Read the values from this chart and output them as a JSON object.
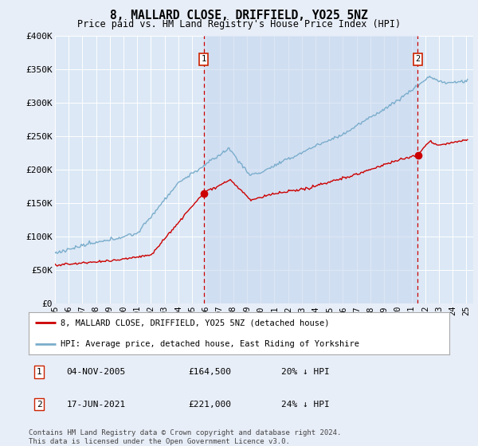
{
  "title": "8, MALLARD CLOSE, DRIFFIELD, YO25 5NZ",
  "subtitle": "Price paid vs. HM Land Registry's House Price Index (HPI)",
  "legend_red": "8, MALLARD CLOSE, DRIFFIELD, YO25 5NZ (detached house)",
  "legend_blue": "HPI: Average price, detached house, East Riding of Yorkshire",
  "annotation1_date": "04-NOV-2005",
  "annotation1_price": "£164,500",
  "annotation1_hpi": "20% ↓ HPI",
  "annotation1_year": 2005.85,
  "annotation2_date": "17-JUN-2021",
  "annotation2_price": "£221,000",
  "annotation2_hpi": "24% ↓ HPI",
  "annotation2_year": 2021.46,
  "footer": "Contains HM Land Registry data © Crown copyright and database right 2024.\nThis data is licensed under the Open Government Licence v3.0.",
  "bg_color": "#e8eef8",
  "plot_bg_color": "#dce8f5",
  "shade_color": "#c8d8ef",
  "red_color": "#cc0000",
  "blue_color": "#7aadcc",
  "xmin": 1995,
  "xmax": 2025.5,
  "ymin": 0,
  "ymax": 400000,
  "yticks": [
    0,
    50000,
    100000,
    150000,
    200000,
    250000,
    300000,
    350000,
    400000
  ],
  "ytick_labels": [
    "£0",
    "£50K",
    "£100K",
    "£150K",
    "£200K",
    "£250K",
    "£300K",
    "£350K",
    "£400K"
  ],
  "xticks": [
    1995,
    1996,
    1997,
    1998,
    1999,
    2000,
    2001,
    2002,
    2003,
    2004,
    2005,
    2006,
    2007,
    2008,
    2009,
    2010,
    2011,
    2012,
    2013,
    2014,
    2015,
    2016,
    2017,
    2018,
    2019,
    2020,
    2021,
    2022,
    2023,
    2024,
    2025
  ],
  "xtick_labels": [
    "95",
    "96",
    "97",
    "98",
    "99",
    "00",
    "01",
    "02",
    "03",
    "04",
    "05",
    "06",
    "07",
    "08",
    "09",
    "10",
    "11",
    "12",
    "13",
    "14",
    "15",
    "16",
    "17",
    "18",
    "19",
    "20",
    "21",
    "22",
    "23",
    "24",
    "25"
  ]
}
